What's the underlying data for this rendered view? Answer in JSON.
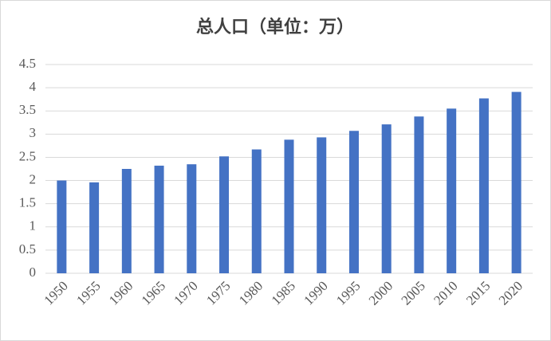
{
  "chart_data": {
    "type": "bar",
    "title": "总人口（单位：万）",
    "categories": [
      "1950",
      "1955",
      "1960",
      "1965",
      "1970",
      "1975",
      "1980",
      "1985",
      "1990",
      "1995",
      "2000",
      "2005",
      "2010",
      "2015",
      "2020"
    ],
    "values": [
      2.0,
      1.96,
      2.25,
      2.32,
      2.35,
      2.52,
      2.67,
      2.88,
      2.93,
      3.07,
      3.21,
      3.38,
      3.55,
      3.77,
      3.91
    ],
    "color": "#4472c4",
    "ylim": [
      0,
      4.5
    ],
    "yticks": [
      0,
      0.5,
      1,
      1.5,
      2,
      2.5,
      3,
      3.5,
      4,
      4.5
    ],
    "grid": true
  }
}
